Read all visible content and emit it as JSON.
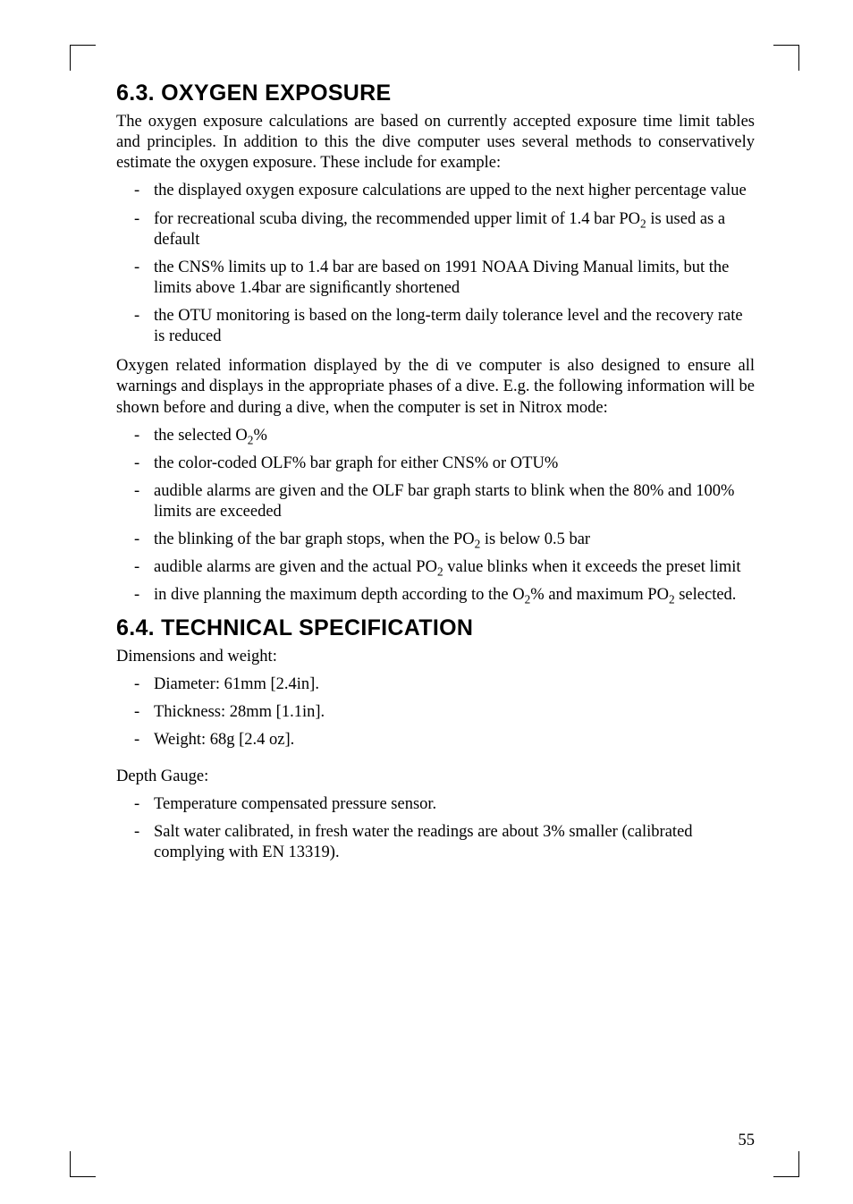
{
  "section63": {
    "heading": "6.3.   OXYGEN EXPOSURE",
    "p1": "The oxygen exposure calculations are based on currently accepted exposure time limit tables and principles. In addition to this the dive computer uses several methods to conservatively estimate the oxygen exposure. These include for example:",
    "list1": [
      "the displayed oxygen exposure calculations are upped to the next higher percentage value",
      "for recreational scuba diving, the recommended upper limit of 1.4 bar PO|2| is used as a default",
      "the CNS% limits up to 1.4 bar are based on 1991 NOAA Diving Manual limits, but the limits above 1.4bar are signiﬁcantly shortened",
      "the OTU monitoring is based on the long-term daily tolerance level and the recovery rate is reduced"
    ],
    "p2": "Oxygen related information displayed by the di ve computer is also designed to ensure all warnings and displays in the appropriate phases of a dive. E.g. the following information will be shown before and during a dive, when the computer is set in Nitrox mode:",
    "list2": [
      "the selected O|2|%",
      "the color-coded OLF% bar graph for either CNS% or OTU%",
      "audible alarms are given and the OLF bar graph starts to blink when the 80% and 100% limits are exceeded",
      "the blinking of the bar graph stops, when the PO|2| is below 0.5 bar",
      "audible alarms are given and the actual PO|2| value blinks when it exceeds the preset limit",
      "in dive planning the maximum depth according to the O|2|% and maximum PO|2| selected."
    ]
  },
  "section64": {
    "heading": "6.4.   TECHNICAL SPECIFICATION",
    "p1": "Dimensions and weight:",
    "list1": [
      "Diameter: 61mm [2.4in].",
      "Thickness: 28mm [1.1in].",
      "Weight: 68g [2.4 oz]."
    ],
    "p2": "Depth Gauge:",
    "list2": [
      "Temperature compensated pressure sensor.",
      "Salt water calibrated, in fresh water the readings are about 3% smaller (calibrated complying with EN 13319)."
    ]
  },
  "pageNumber": "55",
  "style": {
    "heading_font": "Arial",
    "body_font": "Times New Roman",
    "heading_fontsize_pt": 19,
    "body_fontsize_pt": 14,
    "bg_color": "#ffffff",
    "text_color": "#000000"
  }
}
